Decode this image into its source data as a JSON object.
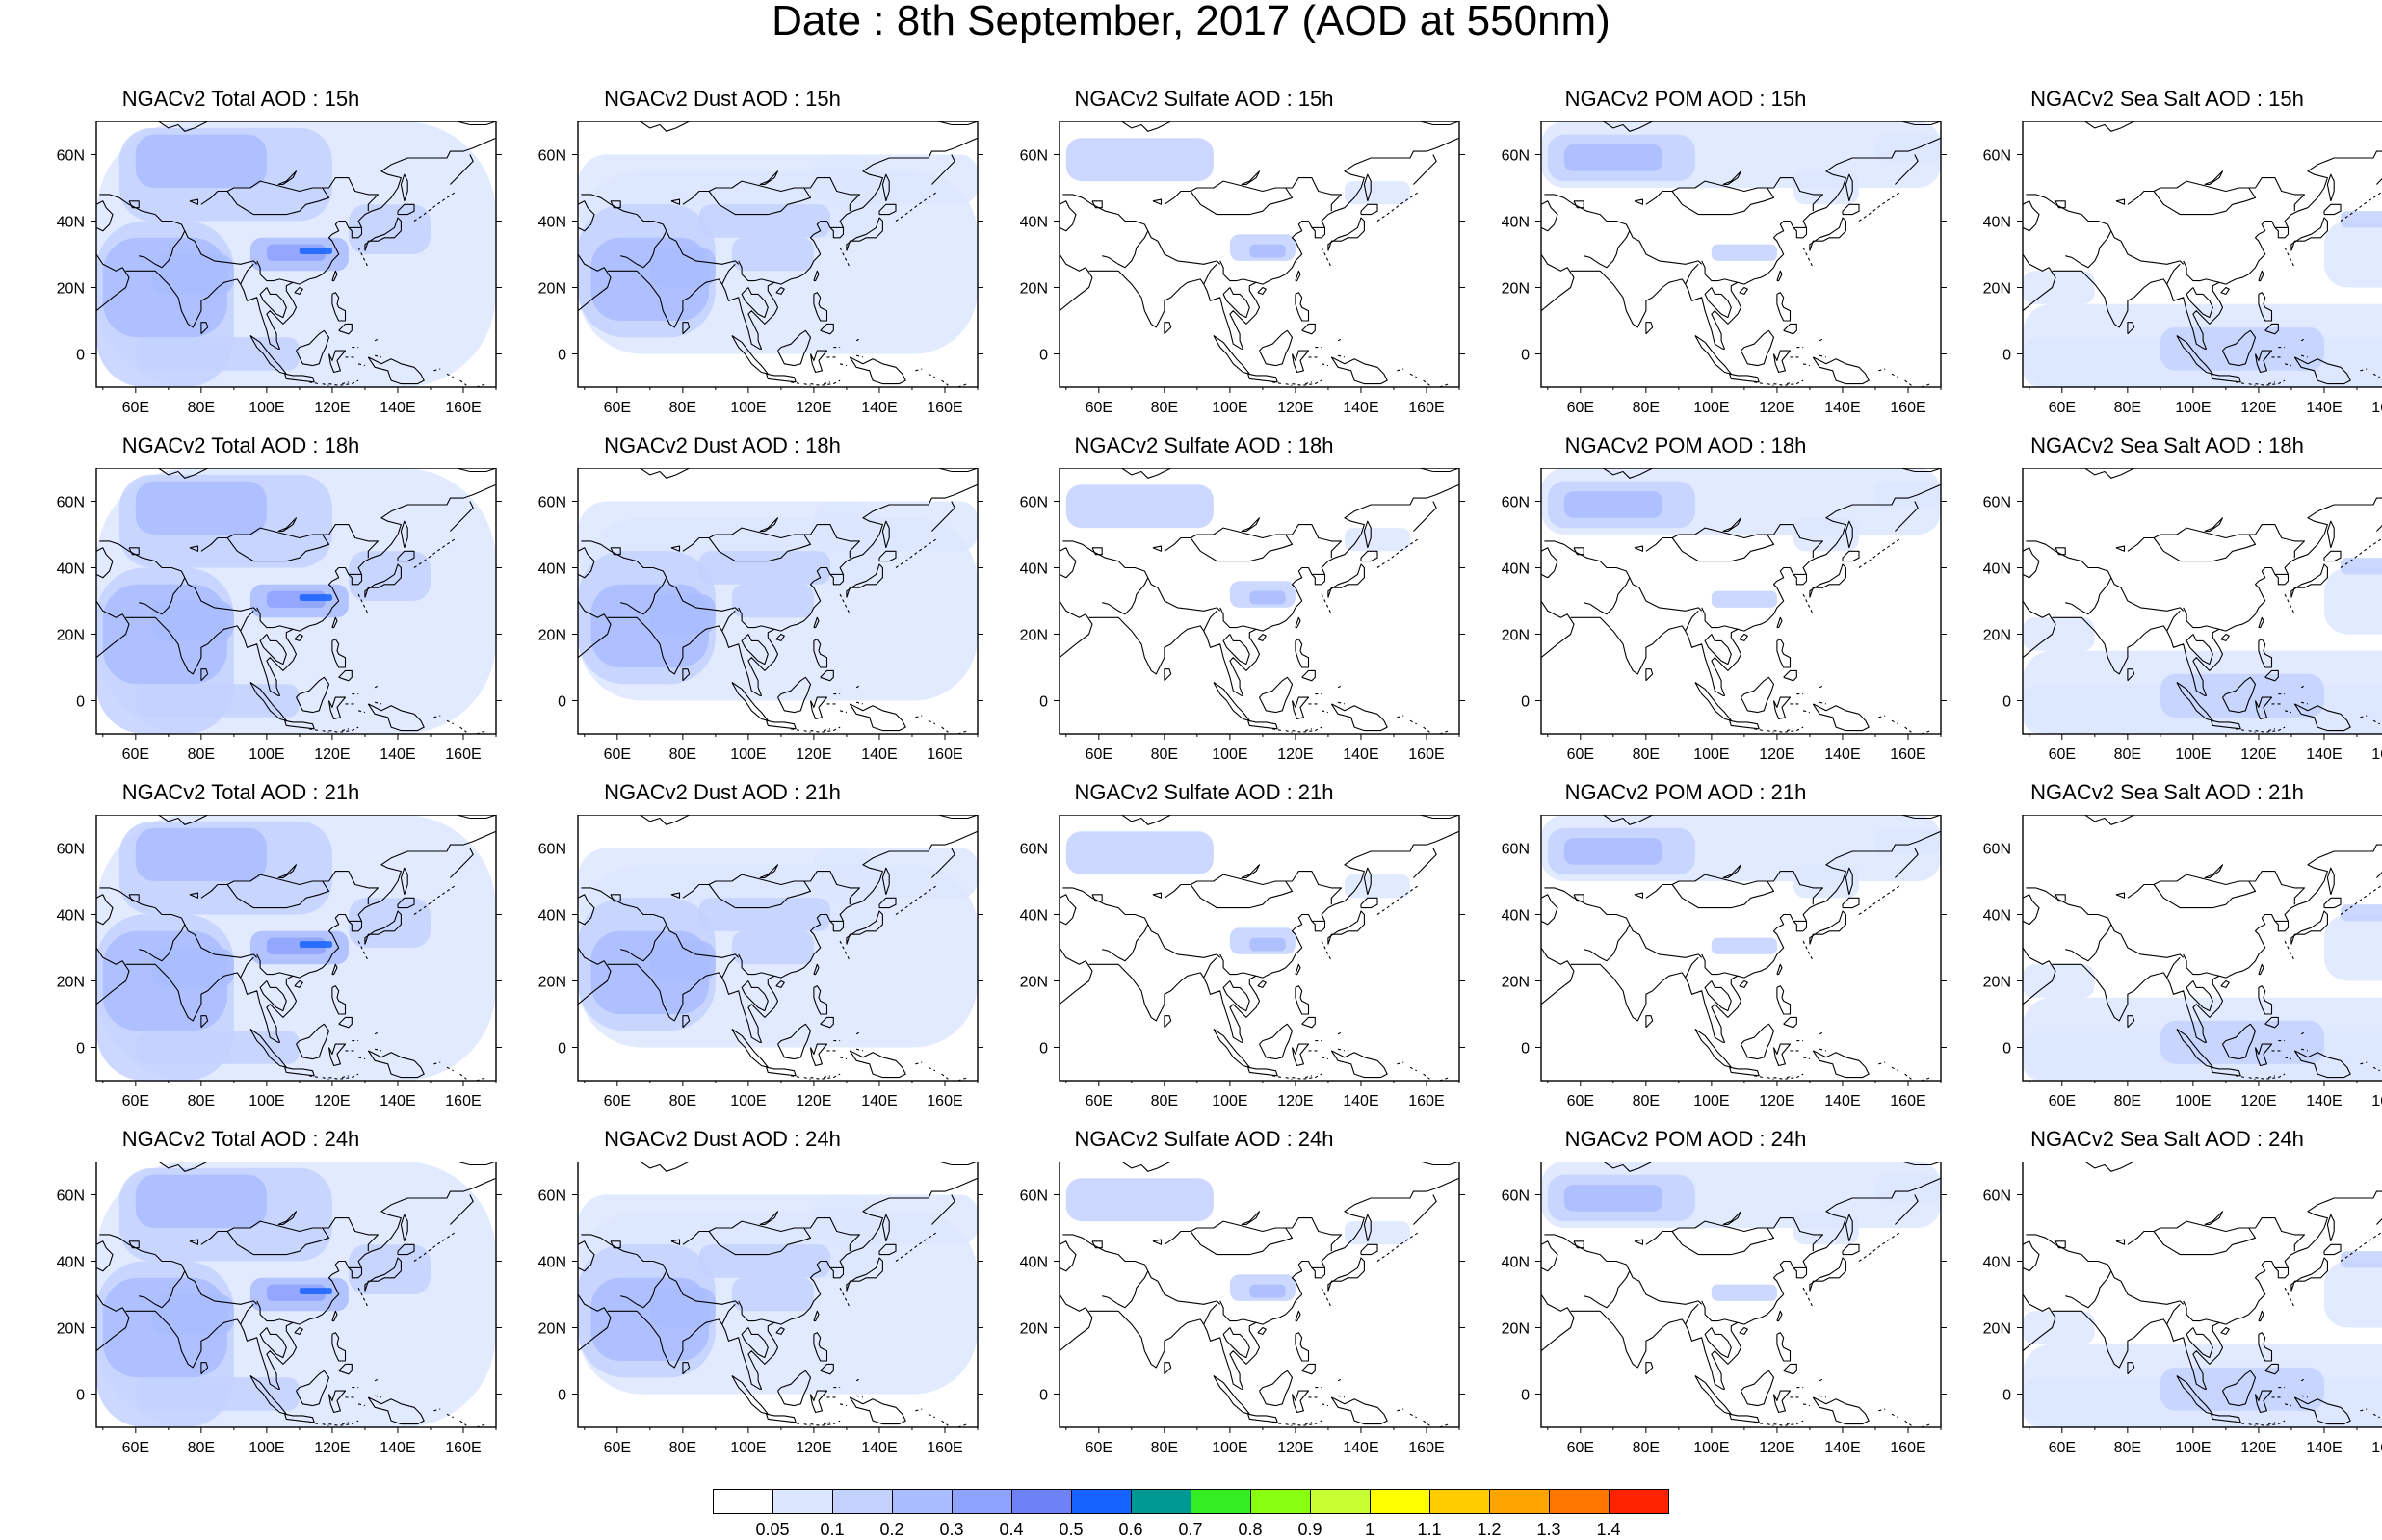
{
  "figure": {
    "title": "Date : 8th September, 2017 (AOD at 550nm)"
  },
  "map": {
    "lon_labels": [
      "60E",
      "80E",
      "100E",
      "120E",
      "140E",
      "160E"
    ],
    "lat_labels": [
      "60N",
      "40N",
      "20N",
      "0"
    ]
  },
  "panels": [
    [
      {
        "title": "NGACv2 Total AOD : 15h",
        "species": "total",
        "hour": "15h"
      },
      {
        "title": "NGACv2 Dust AOD : 15h",
        "species": "dust",
        "hour": "15h"
      },
      {
        "title": "NGACv2 Sulfate AOD : 15h",
        "species": "sulfate",
        "hour": "15h"
      },
      {
        "title": "NGACv2 POM AOD : 15h",
        "species": "pom",
        "hour": "15h"
      },
      {
        "title": "NGACv2 Sea Salt AOD : 15h",
        "species": "seasalt",
        "hour": "15h"
      }
    ],
    [
      {
        "title": "NGACv2 Total AOD : 18h",
        "species": "total",
        "hour": "18h"
      },
      {
        "title": "NGACv2 Dust AOD : 18h",
        "species": "dust",
        "hour": "18h"
      },
      {
        "title": "NGACv2 Sulfate AOD : 18h",
        "species": "sulfate",
        "hour": "18h"
      },
      {
        "title": "NGACv2 POM AOD : 18h",
        "species": "pom",
        "hour": "18h"
      },
      {
        "title": "NGACv2 Sea Salt AOD : 18h",
        "species": "seasalt",
        "hour": "18h"
      }
    ],
    [
      {
        "title": "NGACv2 Total AOD : 21h",
        "species": "total",
        "hour": "21h"
      },
      {
        "title": "NGACv2 Dust AOD : 21h",
        "species": "dust",
        "hour": "21h"
      },
      {
        "title": "NGACv2 Sulfate AOD : 21h",
        "species": "sulfate",
        "hour": "21h"
      },
      {
        "title": "NGACv2 POM AOD : 21h",
        "species": "pom",
        "hour": "21h"
      },
      {
        "title": "NGACv2 Sea Salt AOD : 21h",
        "species": "seasalt",
        "hour": "21h"
      }
    ],
    [
      {
        "title": "NGACv2 Total AOD : 24h",
        "species": "total",
        "hour": "24h"
      },
      {
        "title": "NGACv2 Dust AOD : 24h",
        "species": "dust",
        "hour": "24h"
      },
      {
        "title": "NGACv2 Sulfate AOD : 24h",
        "species": "sulfate",
        "hour": "24h"
      },
      {
        "title": "NGACv2 POM AOD : 24h",
        "species": "pom",
        "hour": "24h"
      },
      {
        "title": "NGACv2 Sea Salt  AOD : 24h",
        "species": "seasalt",
        "hour": "24h"
      }
    ]
  ],
  "colorbar": {
    "labels": [
      "0.05",
      "0.1",
      "0.2",
      "0.3",
      "0.4",
      "0.5",
      "0.6",
      "0.7",
      "0.8",
      "0.9",
      "1",
      "1.1",
      "1.2",
      "1.3",
      "1.4"
    ],
    "colors": [
      "#ffffff",
      "#dce6ff",
      "#c3d1ff",
      "#a9bcff",
      "#8ea2ff",
      "#6e82f5",
      "#1663ff",
      "#009a94",
      "#33ee22",
      "#88ff11",
      "#c8ff33",
      "#ffff00",
      "#ffcc00",
      "#ffa500",
      "#ff7700",
      "#ff2200"
    ]
  }
}
